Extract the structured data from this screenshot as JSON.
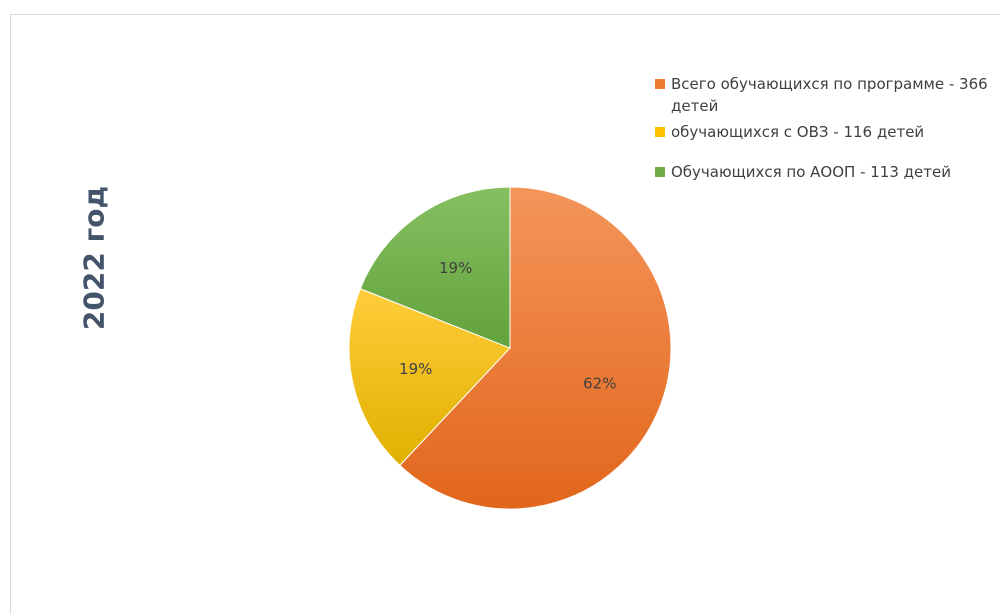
{
  "chart_data": {
    "type": "pie",
    "title": "2022 год",
    "slices": [
      {
        "label": "Всего обучающихся по программе - 366 детей",
        "value": 62,
        "pct_label": "62%",
        "color": "#ed7d31"
      },
      {
        "label": "обучающихся с ОВЗ - 116 детей",
        "value": 19,
        "pct_label": "19%",
        "color": "#ffc000"
      },
      {
        "label": "Обучающихся по АООП - 113 детей",
        "value": 19,
        "pct_label": "19%",
        "color": "#70ad47"
      }
    ],
    "legend_position": "top-right"
  }
}
